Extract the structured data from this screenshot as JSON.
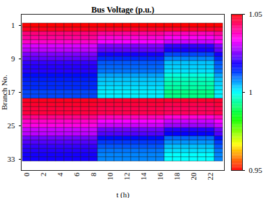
{
  "chart_data": {
    "type": "heatmap",
    "title": "Bus Voltage (p.u.)",
    "x_label": "t (h)",
    "y_label": "Branch No.",
    "x": [
      0,
      1,
      2,
      3,
      4,
      5,
      6,
      7,
      8,
      9,
      10,
      11,
      12,
      13,
      14,
      15,
      16,
      17,
      18,
      19,
      20,
      21,
      22,
      23
    ],
    "y": [
      1,
      2,
      3,
      4,
      5,
      6,
      7,
      8,
      9,
      10,
      11,
      12,
      13,
      14,
      15,
      16,
      17,
      18,
      19,
      20,
      21,
      22,
      23,
      24,
      25,
      26,
      27,
      28,
      29,
      30,
      31,
      32,
      33
    ],
    "xticks": [
      0,
      2,
      4,
      6,
      8,
      10,
      12,
      14,
      16,
      18,
      20,
      22
    ],
    "yticks": [
      1,
      9,
      17,
      25,
      33
    ],
    "color": "hsv",
    "values": [
      [
        1.05,
        1.05,
        1.05,
        1.05,
        1.05,
        1.05,
        1.05,
        1.05,
        1.05,
        1.05,
        1.05,
        1.05,
        1.05,
        1.05,
        1.05,
        1.05,
        1.05,
        1.05,
        1.05,
        1.05,
        1.05,
        1.05,
        1.05,
        1.05
      ],
      [
        1.048,
        1.048,
        1.048,
        1.048,
        1.048,
        1.048,
        1.048,
        1.048,
        1.048,
        1.047,
        1.047,
        1.047,
        1.047,
        1.047,
        1.047,
        1.047,
        1.047,
        1.047,
        1.047,
        1.047,
        1.047,
        1.047,
        1.047,
        1.047
      ],
      [
        1.042,
        1.042,
        1.042,
        1.042,
        1.042,
        1.042,
        1.042,
        1.042,
        1.042,
        1.04,
        1.04,
        1.04,
        1.04,
        1.04,
        1.04,
        1.04,
        1.04,
        1.038,
        1.038,
        1.038,
        1.038,
        1.038,
        1.038,
        1.04
      ],
      [
        1.04,
        1.04,
        1.04,
        1.04,
        1.04,
        1.04,
        1.04,
        1.04,
        1.04,
        1.036,
        1.036,
        1.036,
        1.036,
        1.036,
        1.036,
        1.036,
        1.036,
        1.034,
        1.034,
        1.034,
        1.034,
        1.034,
        1.034,
        1.036
      ],
      [
        1.037,
        1.037,
        1.037,
        1.037,
        1.037,
        1.037,
        1.037,
        1.037,
        1.037,
        1.033,
        1.033,
        1.033,
        1.033,
        1.033,
        1.033,
        1.033,
        1.033,
        1.03,
        1.03,
        1.03,
        1.03,
        1.03,
        1.03,
        1.033
      ],
      [
        1.031,
        1.031,
        1.031,
        1.031,
        1.031,
        1.031,
        1.031,
        1.031,
        1.031,
        1.025,
        1.025,
        1.025,
        1.025,
        1.025,
        1.025,
        1.025,
        1.025,
        1.02,
        1.02,
        1.02,
        1.02,
        1.02,
        1.02,
        1.025
      ],
      [
        1.029,
        1.029,
        1.029,
        1.029,
        1.029,
        1.029,
        1.029,
        1.029,
        1.029,
        1.023,
        1.023,
        1.023,
        1.023,
        1.023,
        1.023,
        1.023,
        1.023,
        1.018,
        1.018,
        1.018,
        1.018,
        1.018,
        1.018,
        1.023
      ],
      [
        1.025,
        1.025,
        1.025,
        1.025,
        1.025,
        1.025,
        1.025,
        1.025,
        1.025,
        1.018,
        1.018,
        1.018,
        1.018,
        1.018,
        1.018,
        1.018,
        1.018,
        1.012,
        1.012,
        1.012,
        1.012,
        1.012,
        1.012,
        1.018
      ],
      [
        1.023,
        1.023,
        1.023,
        1.023,
        1.023,
        1.023,
        1.023,
        1.023,
        1.023,
        1.014,
        1.014,
        1.014,
        1.014,
        1.014,
        1.014,
        1.014,
        1.014,
        1.008,
        1.008,
        1.008,
        1.008,
        1.008,
        1.008,
        1.014
      ],
      [
        1.02,
        1.02,
        1.02,
        1.02,
        1.02,
        1.02,
        1.02,
        1.02,
        1.02,
        1.011,
        1.011,
        1.011,
        1.011,
        1.011,
        1.011,
        1.011,
        1.011,
        1.004,
        1.004,
        1.004,
        1.004,
        1.004,
        1.004,
        1.011
      ],
      [
        1.019,
        1.019,
        1.019,
        1.019,
        1.019,
        1.019,
        1.019,
        1.019,
        1.019,
        1.01,
        1.01,
        1.01,
        1.01,
        1.01,
        1.01,
        1.01,
        1.01,
        1.003,
        1.003,
        1.003,
        1.003,
        1.003,
        1.003,
        1.01
      ],
      [
        1.019,
        1.019,
        1.019,
        1.019,
        1.019,
        1.019,
        1.019,
        1.019,
        1.019,
        1.009,
        1.009,
        1.009,
        1.009,
        1.009,
        1.009,
        1.009,
        1.009,
        1.002,
        1.002,
        1.002,
        1.002,
        1.002,
        1.002,
        1.009
      ],
      [
        1.016,
        1.016,
        1.016,
        1.016,
        1.016,
        1.016,
        1.016,
        1.016,
        1.016,
        1.006,
        1.006,
        1.006,
        1.006,
        1.006,
        1.006,
        1.006,
        1.006,
        0.998,
        0.998,
        0.998,
        0.998,
        0.998,
        0.998,
        1.006
      ],
      [
        1.015,
        1.015,
        1.015,
        1.015,
        1.015,
        1.015,
        1.015,
        1.015,
        1.015,
        1.004,
        1.004,
        1.004,
        1.004,
        1.004,
        1.004,
        1.004,
        1.004,
        0.996,
        0.996,
        0.996,
        0.996,
        0.996,
        0.996,
        1.004
      ],
      [
        1.014,
        1.014,
        1.014,
        1.014,
        1.014,
        1.014,
        1.014,
        1.014,
        1.014,
        1.003,
        1.003,
        1.003,
        1.003,
        1.003,
        1.003,
        1.003,
        1.003,
        0.995,
        0.995,
        0.995,
        0.995,
        0.995,
        0.995,
        1.003
      ],
      [
        1.014,
        1.014,
        1.014,
        1.014,
        1.014,
        1.014,
        1.014,
        1.014,
        1.014,
        1.002,
        1.002,
        1.002,
        1.002,
        1.002,
        1.002,
        1.002,
        1.002,
        0.994,
        0.994,
        0.994,
        0.994,
        0.994,
        0.994,
        1.002
      ],
      [
        1.012,
        1.012,
        1.012,
        1.012,
        1.012,
        1.012,
        1.012,
        1.012,
        1.012,
        1.001,
        1.001,
        1.001,
        1.001,
        1.001,
        1.001,
        1.001,
        1.001,
        0.992,
        0.992,
        0.992,
        0.992,
        0.992,
        0.992,
        1.001
      ],
      [
        1.012,
        1.012,
        1.012,
        1.012,
        1.012,
        1.012,
        1.012,
        1.012,
        1.012,
        1.001,
        1.001,
        1.001,
        1.001,
        1.001,
        1.001,
        1.001,
        1.001,
        0.992,
        0.992,
        0.992,
        0.992,
        0.992,
        0.992,
        1.001
      ],
      [
        1.048,
        1.048,
        1.048,
        1.048,
        1.048,
        1.048,
        1.048,
        1.048,
        1.048,
        1.047,
        1.047,
        1.047,
        1.047,
        1.047,
        1.047,
        1.047,
        1.047,
        1.047,
        1.047,
        1.047,
        1.047,
        1.047,
        1.047,
        1.047
      ],
      [
        1.047,
        1.047,
        1.047,
        1.047,
        1.047,
        1.047,
        1.047,
        1.047,
        1.047,
        1.046,
        1.046,
        1.046,
        1.046,
        1.046,
        1.046,
        1.046,
        1.046,
        1.045,
        1.045,
        1.045,
        1.045,
        1.045,
        1.045,
        1.046
      ],
      [
        1.046,
        1.046,
        1.046,
        1.046,
        1.046,
        1.046,
        1.046,
        1.046,
        1.046,
        1.045,
        1.045,
        1.045,
        1.045,
        1.045,
        1.045,
        1.045,
        1.045,
        1.044,
        1.044,
        1.044,
        1.044,
        1.044,
        1.044,
        1.045
      ],
      [
        1.046,
        1.046,
        1.046,
        1.046,
        1.046,
        1.046,
        1.046,
        1.046,
        1.046,
        1.045,
        1.045,
        1.045,
        1.045,
        1.045,
        1.045,
        1.045,
        1.045,
        1.044,
        1.044,
        1.044,
        1.044,
        1.044,
        1.044,
        1.045
      ],
      [
        1.041,
        1.041,
        1.041,
        1.041,
        1.041,
        1.041,
        1.041,
        1.041,
        1.041,
        1.038,
        1.038,
        1.038,
        1.038,
        1.038,
        1.038,
        1.038,
        1.038,
        1.036,
        1.036,
        1.036,
        1.036,
        1.036,
        1.036,
        1.038
      ],
      [
        1.037,
        1.037,
        1.037,
        1.037,
        1.037,
        1.037,
        1.037,
        1.037,
        1.037,
        1.033,
        1.033,
        1.033,
        1.033,
        1.033,
        1.033,
        1.033,
        1.033,
        1.03,
        1.03,
        1.03,
        1.03,
        1.03,
        1.03,
        1.033
      ],
      [
        1.035,
        1.035,
        1.035,
        1.035,
        1.035,
        1.035,
        1.035,
        1.035,
        1.035,
        1.03,
        1.03,
        1.03,
        1.03,
        1.03,
        1.03,
        1.03,
        1.03,
        1.027,
        1.027,
        1.027,
        1.027,
        1.027,
        1.027,
        1.03
      ],
      [
        1.03,
        1.03,
        1.03,
        1.03,
        1.03,
        1.03,
        1.03,
        1.03,
        1.03,
        1.024,
        1.024,
        1.024,
        1.024,
        1.024,
        1.024,
        1.024,
        1.024,
        1.019,
        1.019,
        1.019,
        1.019,
        1.019,
        1.019,
        1.024
      ],
      [
        1.029,
        1.029,
        1.029,
        1.029,
        1.029,
        1.029,
        1.029,
        1.029,
        1.029,
        1.022,
        1.022,
        1.022,
        1.022,
        1.022,
        1.022,
        1.022,
        1.022,
        1.017,
        1.017,
        1.017,
        1.017,
        1.017,
        1.017,
        1.022
      ],
      [
        1.024,
        1.024,
        1.024,
        1.024,
        1.024,
        1.024,
        1.024,
        1.024,
        1.024,
        1.016,
        1.016,
        1.016,
        1.016,
        1.016,
        1.016,
        1.016,
        1.016,
        1.01,
        1.01,
        1.01,
        1.01,
        1.01,
        1.01,
        1.016
      ],
      [
        1.022,
        1.022,
        1.022,
        1.022,
        1.022,
        1.022,
        1.022,
        1.022,
        1.022,
        1.013,
        1.013,
        1.013,
        1.013,
        1.013,
        1.013,
        1.013,
        1.013,
        1.007,
        1.007,
        1.007,
        1.007,
        1.007,
        1.007,
        1.013
      ],
      [
        1.02,
        1.02,
        1.02,
        1.02,
        1.02,
        1.02,
        1.02,
        1.02,
        1.02,
        1.011,
        1.011,
        1.011,
        1.011,
        1.011,
        1.011,
        1.011,
        1.011,
        1.004,
        1.004,
        1.004,
        1.004,
        1.004,
        1.004,
        1.011
      ],
      [
        1.019,
        1.019,
        1.019,
        1.019,
        1.019,
        1.019,
        1.019,
        1.019,
        1.019,
        1.009,
        1.009,
        1.009,
        1.009,
        1.009,
        1.009,
        1.009,
        1.009,
        1.002,
        1.002,
        1.002,
        1.002,
        1.002,
        1.002,
        1.009
      ],
      [
        1.018,
        1.018,
        1.018,
        1.018,
        1.018,
        1.018,
        1.018,
        1.018,
        1.018,
        1.008,
        1.008,
        1.008,
        1.008,
        1.008,
        1.008,
        1.008,
        1.008,
        1.0,
        1.0,
        1.0,
        1.0,
        1.0,
        1.0,
        1.008
      ],
      [
        1.018,
        1.018,
        1.018,
        1.018,
        1.018,
        1.018,
        1.018,
        1.018,
        1.018,
        1.008,
        1.008,
        1.008,
        1.008,
        1.008,
        1.008,
        1.008,
        1.008,
        1.0,
        1.0,
        1.0,
        1.0,
        1.0,
        1.0,
        1.008
      ]
    ],
    "colorbar": {
      "range": [
        0.95,
        1.05
      ],
      "ticks": [
        0.95,
        1,
        1.05
      ]
    }
  }
}
